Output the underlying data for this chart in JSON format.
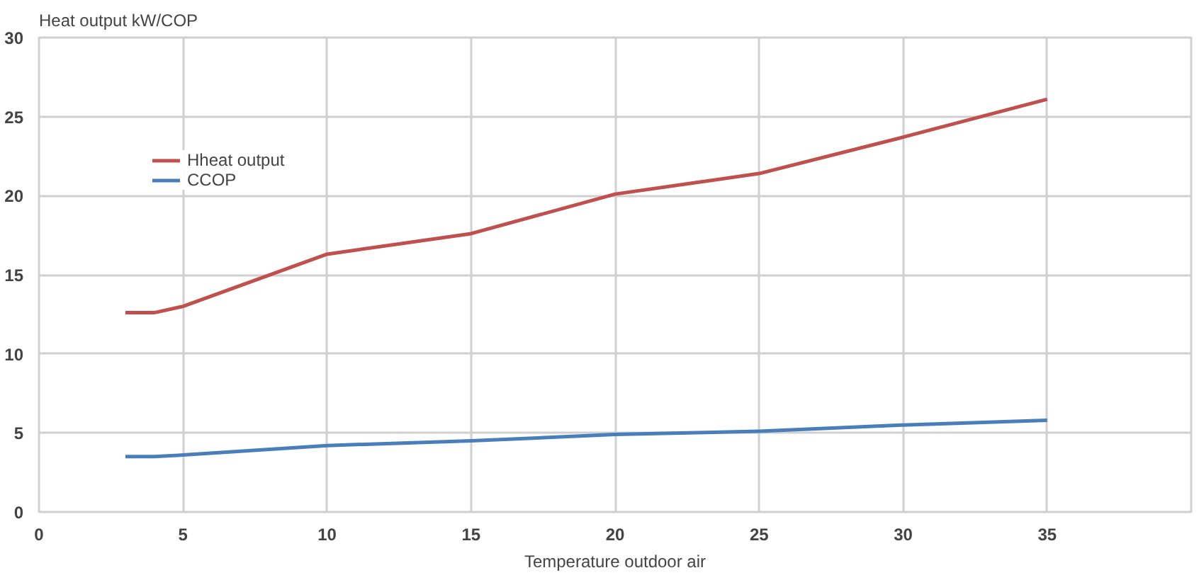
{
  "chart_data": {
    "type": "line",
    "ylabel": "Heat output kW/COP",
    "xlabel": "Temperature outdoor air",
    "xlim": [
      0,
      40
    ],
    "xticks": [
      0,
      5,
      10,
      15,
      20,
      25,
      30,
      35,
      {
        "value": 40,
        "label": null
      }
    ],
    "ylim": [
      0,
      30
    ],
    "yticks": [
      0,
      5,
      10,
      15,
      20,
      25,
      30
    ],
    "grid": true,
    "legend": "top left",
    "line_style": "solid",
    "series": [
      {
        "name": "Hheat output",
        "color": "#c0504d",
        "x": [
          3,
          4,
          5,
          10,
          15,
          20,
          25,
          30,
          35
        ],
        "values": [
          12.6,
          12.6,
          13.0,
          16.3,
          17.6,
          20.1,
          21.4,
          23.7,
          26.1
        ]
      },
      {
        "name": "CCOP",
        "color": "#4a7ebb",
        "x": [
          3,
          4,
          5,
          10,
          15,
          20,
          25,
          30,
          35
        ],
        "values": [
          3.5,
          3.5,
          3.6,
          4.2,
          4.5,
          4.9,
          5.1,
          5.5,
          5.8
        ]
      }
    ]
  }
}
